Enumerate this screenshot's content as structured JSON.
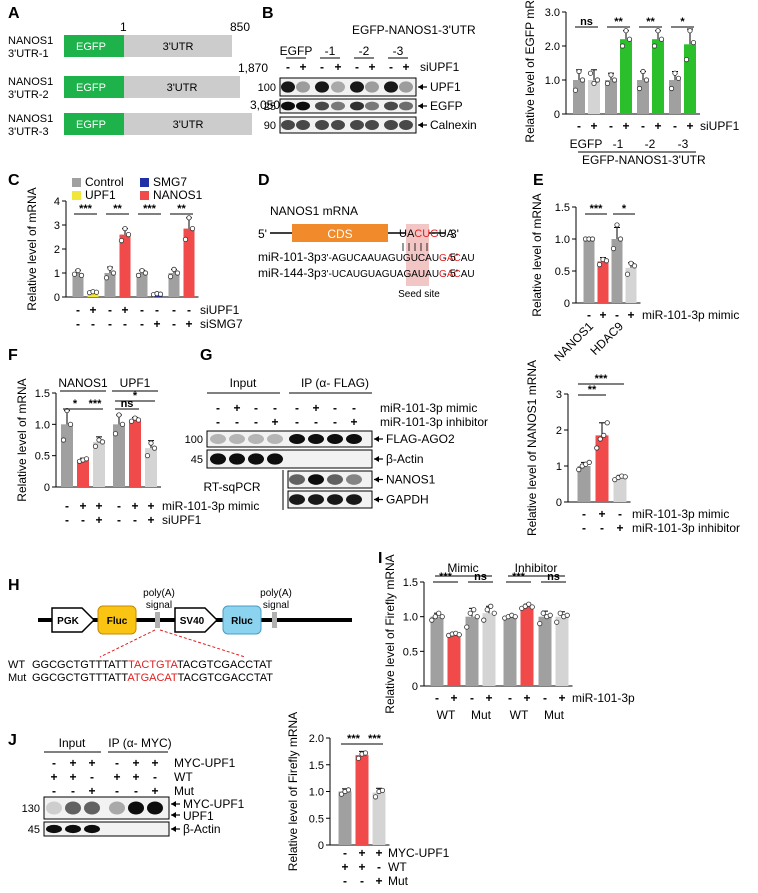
{
  "panels": {
    "A": {
      "letter": "A",
      "constructs": [
        {
          "name1": "NANOS1",
          "name2": "3'UTR-1",
          "egfp": "EGFP",
          "utr": "3'UTR",
          "start": "1",
          "end": "850"
        },
        {
          "name1": "NANOS1",
          "name2": "3'UTR-2",
          "egfp": "EGFP",
          "utr": "3'UTR",
          "end": "1,870"
        },
        {
          "name1": "NANOS1",
          "name2": "3'UTR-3",
          "egfp": "EGFP",
          "utr": "3'UTR",
          "end": "3,050"
        }
      ]
    },
    "B": {
      "letter": "B",
      "blot": {
        "title": "EGFP-NANOS1-3'UTR",
        "groups": [
          "EGFP",
          "-1",
          "-2",
          "-3"
        ],
        "signs": [
          "-",
          "+",
          "-",
          "+",
          "-",
          "+",
          "-",
          "+"
        ],
        "treatment": "siUPF1",
        "mw": [
          "100",
          "25",
          "90"
        ],
        "bands": [
          "UPF1",
          "EGFP",
          "Calnexin"
        ]
      },
      "chart_data": {
        "type": "bar",
        "ylabel": "Relative level of EGFP mRNA",
        "ylim": [
          0,
          3
        ],
        "yticks": [
          "0",
          "1.0",
          "2.0",
          "3.0"
        ],
        "values": [
          1.0,
          1.0,
          1.0,
          2.2,
          1.0,
          2.2,
          1.0,
          2.05
        ],
        "errors": [
          0.3,
          0.3,
          0.2,
          0.25,
          0.25,
          0.25,
          0.25,
          0.45
        ],
        "points": [
          [
            0.7,
            1.25,
            1.0
          ],
          [
            1.2,
            0.9,
            1.0
          ],
          [
            0.9,
            1.15,
            1.0
          ],
          [
            2.0,
            2.45,
            2.2
          ],
          [
            0.75,
            1.25,
            1.0
          ],
          [
            2.0,
            2.45,
            2.2
          ],
          [
            0.75,
            1.2,
            1.05
          ],
          [
            1.6,
            2.45,
            2.1
          ]
        ],
        "colors": [
          "#a0a0a0",
          "#d4d4d4",
          "#a0a0a0",
          "#2bc02b",
          "#a0a0a0",
          "#2bc02b",
          "#a0a0a0",
          "#2bc02b"
        ],
        "signif": [
          "ns",
          "**",
          "**",
          "*"
        ],
        "signs": [
          "-",
          "+",
          "-",
          "+",
          "-",
          "+",
          "-",
          "+"
        ],
        "treatment": "siUPF1",
        "group_labels": [
          "EGFP",
          "-1",
          "-2",
          "-3"
        ],
        "construct_label": "EGFP-NANOS1-3'UTR"
      }
    },
    "C": {
      "letter": "C",
      "chart_data": {
        "type": "bar",
        "ylabel": "Relative level of mRNA",
        "ylim": [
          0,
          4
        ],
        "yticks": [
          "0",
          "1",
          "2",
          "3",
          "4"
        ],
        "legend": [
          {
            "name": "Control",
            "color": "#a0a0a0"
          },
          {
            "name": "UPF1",
            "color": "#f2e63a"
          },
          {
            "name": "SMG7",
            "color": "#1f2fa6"
          },
          {
            "name": "NANOS1",
            "color": "#f04a4a"
          }
        ],
        "values": [
          1.0,
          0.2,
          1.0,
          2.6,
          1.0,
          0.12,
          1.0,
          2.85
        ],
        "errors": [
          0.12,
          0.06,
          0.25,
          0.25,
          0.12,
          0.05,
          0.15,
          0.45
        ],
        "points": [
          [
            0.95,
            1.1,
            0.9
          ],
          [
            0.18,
            0.22,
            0.2
          ],
          [
            0.8,
            1.2,
            1.0
          ],
          [
            2.35,
            2.85,
            2.6
          ],
          [
            0.9,
            1.1,
            1.0
          ],
          [
            0.1,
            0.14,
            0.12
          ],
          [
            0.85,
            1.15,
            1.0
          ],
          [
            2.4,
            3.3,
            2.85
          ]
        ],
        "colors": [
          "#a0a0a0",
          "#f2e63a",
          "#a0a0a0",
          "#f04a4a",
          "#a0a0a0",
          "#1f2fa6",
          "#a0a0a0",
          "#f04a4a"
        ],
        "signif": [
          "***",
          "**",
          "***",
          "**"
        ],
        "rows": [
          {
            "label": "siUPF1",
            "signs": [
              "-",
              "+",
              "-",
              "+",
              "-",
              "-",
              "-",
              "-"
            ]
          },
          {
            "label": "siSMG7",
            "signs": [
              "-",
              "-",
              "-",
              "-",
              "-",
              "+",
              "-",
              "+"
            ]
          }
        ]
      }
    },
    "D": {
      "letter": "D",
      "title": "NANOS1 mRNA",
      "five": "5'",
      "three": "3'",
      "cds": "CDS",
      "target_pre": "UA",
      "target_seed": "CUG",
      "target_post": "UA",
      "mirs": [
        {
          "name": "miR-101-3p",
          "pre": "3'-AGUCAAUAGUGUCAU",
          "seed": "GAC",
          "post": "AU",
          "end": "- 5'"
        },
        {
          "name": "miR-144-3p",
          "pre": "3'-UCAUGUAGUAGAUAU",
          "seed": "GAC",
          "post": "AU",
          "end": "- 5'"
        }
      ],
      "seed_label": "Seed site"
    },
    "E": {
      "letter": "E",
      "chart_data": {
        "type": "bar",
        "ylabel": "Relative level of mRNA",
        "ylim": [
          0,
          1.5
        ],
        "yticks": [
          "0",
          "0.5",
          "1.0",
          "1.5"
        ],
        "values": [
          1.0,
          0.65,
          1.0,
          0.55
        ],
        "errors": [
          0.02,
          0.06,
          0.18,
          0.08
        ],
        "points": [
          [
            1.0,
            1.0,
            1.0
          ],
          [
            0.6,
            0.68,
            0.66
          ],
          [
            0.85,
            1.22,
            1.0
          ],
          [
            0.45,
            0.62,
            0.58
          ]
        ],
        "colors": [
          "#a0a0a0",
          "#f04a4a",
          "#a0a0a0",
          "#d4d4d4"
        ],
        "signif": [
          "***",
          "*"
        ],
        "signs": [
          "-",
          "+",
          "-",
          "+"
        ],
        "treatment": "miR-101-3p mimic",
        "genes": [
          "NANOS1",
          "HDAC9"
        ]
      }
    },
    "F": {
      "letter": "F",
      "chart_data": {
        "type": "bar",
        "ylabel": "Relative level of mRNA",
        "ylim": [
          0,
          1.5
        ],
        "yticks": [
          "0",
          "0.5",
          "1.0",
          "1.5"
        ],
        "gene_titles": [
          "NANOS1",
          "UPF1"
        ],
        "values": [
          1.0,
          0.43,
          0.72,
          1.0,
          1.07,
          0.62
        ],
        "errors": [
          0.22,
          0.03,
          0.08,
          0.15,
          0.04,
          0.12
        ],
        "points": [
          [
            0.75,
            1.22,
            1.0
          ],
          [
            0.41,
            0.43,
            0.45
          ],
          [
            0.65,
            0.75,
            0.72
          ],
          [
            0.85,
            1.15,
            1.0
          ],
          [
            1.05,
            1.1,
            1.07
          ],
          [
            0.5,
            0.7,
            0.62
          ]
        ],
        "colors": [
          "#a0a0a0",
          "#f04a4a",
          "#d4d4d4",
          "#a0a0a0",
          "#f04a4a",
          "#d4d4d4"
        ],
        "signif": [
          "*",
          "***",
          "ns",
          "*"
        ],
        "rows": [
          {
            "label": "miR-101-3p mimic",
            "signs": [
              "-",
              "+",
              "+",
              "-",
              "+",
              "+"
            ]
          },
          {
            "label": "siUPF1",
            "signs": [
              "-",
              "-",
              "+",
              "-",
              "-",
              "+"
            ]
          }
        ]
      }
    },
    "G": {
      "letter": "G",
      "blot": {
        "input_label": "Input",
        "ip_label": "IP (α- FLAG)",
        "row1_label": "miR-101-3p mimic",
        "row1_signs": [
          "-",
          "+",
          "-",
          "-",
          "-",
          "+",
          "-",
          "-"
        ],
        "row2_label": "miR-101-3p inhibitor",
        "row2_signs": [
          "-",
          "-",
          "-",
          "+",
          "-",
          "-",
          "-",
          "+"
        ],
        "mw": [
          "100",
          "45"
        ],
        "bands": [
          "FLAG-AGO2",
          "β-Actin",
          "NANOS1",
          "GAPDH"
        ],
        "rt_label": "RT-sqPCR"
      },
      "chart_data": {
        "type": "bar",
        "ylabel": "Relative level of NANOS1 mRNA",
        "ylim": [
          0,
          3
        ],
        "yticks": [
          "0",
          "1",
          "2",
          "3"
        ],
        "values": [
          1.0,
          1.85,
          0.68
        ],
        "errors": [
          0.1,
          0.35,
          0.06
        ],
        "points": [
          [
            0.9,
            1.0,
            1.05,
            1.1
          ],
          [
            1.5,
            1.75,
            1.85,
            2.2
          ],
          [
            0.62,
            0.68,
            0.72,
            0.7
          ]
        ],
        "colors": [
          "#a0a0a0",
          "#f04a4a",
          "#d4d4d4"
        ],
        "signif": [
          "**",
          "***"
        ],
        "rows": [
          {
            "label": "miR-101-3p mimic",
            "signs": [
              "-",
              "+",
              "-"
            ]
          },
          {
            "label": "miR-101-3p inhibitor",
            "signs": [
              "-",
              "-",
              "+"
            ]
          }
        ]
      }
    },
    "H": {
      "letter": "H",
      "elements": {
        "pgk": "PGK",
        "fluc": "Fluc",
        "polya1": "poly(A) signal",
        "sv40": "SV40",
        "rluc": "Rluc",
        "polya2": "poly(A) signal"
      },
      "seqs": [
        {
          "label": "WT",
          "pre": "GGCGCTGTTTATT",
          "mid": "TACTGTA",
          "post": "TACGTCGACCTAT"
        },
        {
          "label": "Mut",
          "pre": "GGCGCTGTTTATT",
          "mid": "ATGACAT",
          "post": "TACGTCGACCTAT"
        }
      ]
    },
    "I": {
      "letter": "I",
      "chart_data": {
        "type": "bar",
        "ylabel": "Relative level of Firefly mRNA",
        "ylim": [
          0,
          1.5
        ],
        "yticks": [
          "0",
          "0.5",
          "1.0",
          "1.5"
        ],
        "headers": [
          "Mimic",
          "Inhibitor"
        ],
        "values": [
          1.0,
          0.75,
          1.0,
          1.05,
          1.0,
          1.15,
          1.0,
          1.0
        ],
        "errors": [
          0.05,
          0.02,
          0.12,
          0.1,
          0.02,
          0.03,
          0.08,
          0.07
        ],
        "points": [
          [
            0.95,
            1.0,
            1.05,
            1.0
          ],
          [
            0.73,
            0.75,
            0.76,
            0.74
          ],
          [
            0.85,
            1.05,
            1.1,
            1.0
          ],
          [
            0.95,
            1.1,
            1.15,
            1.05
          ],
          [
            0.98,
            1.0,
            1.02,
            1.0
          ],
          [
            1.12,
            1.15,
            1.18,
            1.14
          ],
          [
            0.9,
            1.05,
            1.0,
            1.02
          ],
          [
            0.92,
            1.05,
            1.0,
            1.02
          ]
        ],
        "colors": [
          "#a0a0a0",
          "#f04a4a",
          "#a0a0a0",
          "#d4d4d4",
          "#a0a0a0",
          "#f04a4a",
          "#a0a0a0",
          "#d4d4d4"
        ],
        "signif": [
          "***",
          "ns",
          "***",
          "ns"
        ],
        "signs": [
          "-",
          "+",
          "-",
          "+",
          "-",
          "+",
          "-",
          "+"
        ],
        "treatment": "miR-101-3p",
        "group_labels": [
          "WT",
          "Mut",
          "WT",
          "Mut"
        ]
      }
    },
    "J": {
      "letter": "J",
      "blot": {
        "input_label": "Input",
        "ip_label": "IP (α- MYC)",
        "rows": [
          {
            "label": "MYC-UPF1",
            "signs": [
              "-",
              "+",
              "+",
              "-",
              "+",
              "+"
            ]
          },
          {
            "label": "WT",
            "signs": [
              "+",
              "+",
              "-",
              "+",
              "+",
              "-"
            ]
          },
          {
            "label": "Mut",
            "signs": [
              "-",
              "-",
              "+",
              "-",
              "-",
              "+"
            ]
          }
        ],
        "mw": [
          "130",
          "45"
        ],
        "bands": [
          "MYC-UPF1",
          "UPF1",
          "β-Actin"
        ]
      },
      "chart_data": {
        "type": "bar",
        "ylabel": "Relative level of Firefly mRNA",
        "ylim": [
          0,
          2.0
        ],
        "yticks": [
          "0",
          "0.5",
          "1.0",
          "1.5",
          "2.0"
        ],
        "values": [
          1.0,
          1.68,
          0.98
        ],
        "errors": [
          0.05,
          0.07,
          0.08
        ],
        "points": [
          [
            0.95,
            1.0,
            1.03
          ],
          [
            1.62,
            1.7,
            1.72
          ],
          [
            0.9,
            1.0,
            1.02
          ]
        ],
        "colors": [
          "#a0a0a0",
          "#f04a4a",
          "#d4d4d4"
        ],
        "signif": [
          "***",
          "***"
        ],
        "rows": [
          {
            "label": "MYC-UPF1",
            "signs": [
              "-",
              "+",
              "+"
            ]
          },
          {
            "label": "WT",
            "signs": [
              "+",
              "+",
              "-"
            ]
          },
          {
            "label": "Mut",
            "signs": [
              "-",
              "-",
              "+"
            ]
          }
        ]
      }
    }
  }
}
